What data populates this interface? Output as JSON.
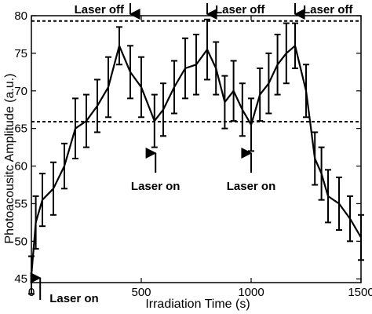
{
  "chart_data": {
    "type": "line",
    "title": "",
    "xlabel": "Irradiation Time (s)",
    "ylabel": "Photoacousitc Amplitude (a.u.)",
    "xlim": [
      0,
      1500
    ],
    "ylim": [
      44.5,
      80
    ],
    "xticks": [
      0,
      500,
      1000,
      1500
    ],
    "yticks": [
      45,
      50,
      55,
      60,
      65,
      70,
      75,
      80
    ],
    "grid": false,
    "legend": "none",
    "series": [
      {
        "x": [
          0,
          20,
          50,
          100,
          150,
          200,
          250,
          300,
          350,
          400,
          450,
          500,
          560,
          600,
          650,
          700,
          750,
          800,
          840,
          880,
          920,
          960,
          1000,
          1040,
          1080,
          1120,
          1160,
          1200,
          1250,
          1290,
          1320,
          1350,
          1400,
          1450,
          1500
        ],
        "y": [
          45.5,
          52.5,
          55.5,
          57.0,
          60.0,
          65.0,
          66.0,
          68.0,
          70.5,
          76.0,
          72.5,
          70.5,
          66.0,
          67.5,
          70.5,
          73.0,
          73.5,
          75.5,
          73.0,
          68.5,
          70.0,
          67.5,
          65.5,
          69.5,
          71.0,
          73.5,
          75.0,
          76.0,
          70.0,
          61.0,
          59.0,
          56.0,
          55.0,
          53.0,
          50.5
        ],
        "error": [
          2.5,
          3.5,
          3.5,
          3.5,
          3.0,
          4.0,
          3.5,
          3.5,
          4.0,
          2.5,
          3.5,
          4.0,
          3.5,
          3.5,
          3.5,
          4.0,
          4.0,
          4.0,
          3.5,
          3.5,
          4.0,
          3.5,
          3.5,
          3.5,
          4.0,
          4.0,
          4.0,
          3.0,
          3.5,
          3.5,
          3.5,
          3.5,
          3.5,
          3.0,
          3.0
        ]
      }
    ],
    "reference_lines": [
      {
        "y": 79.3,
        "style": "dashed"
      },
      {
        "y": 65.9,
        "style": "dashed"
      }
    ],
    "annotations": [
      {
        "text": "Laser on",
        "x": 40,
        "y": 45,
        "arrow": "up"
      },
      {
        "text": "Laser off",
        "x": 450,
        "y": 79.3,
        "arrow": "down"
      },
      {
        "text": "Laser on",
        "x": 565,
        "y": 65.9,
        "arrow": "up"
      },
      {
        "text": "Laser off",
        "x": 800,
        "y": 79.3,
        "arrow": "down"
      },
      {
        "text": "Laser on",
        "x": 1000,
        "y": 65.9,
        "arrow": "up"
      },
      {
        "text": "Laser off",
        "x": 1200,
        "y": 79.3,
        "arrow": "down"
      }
    ]
  }
}
